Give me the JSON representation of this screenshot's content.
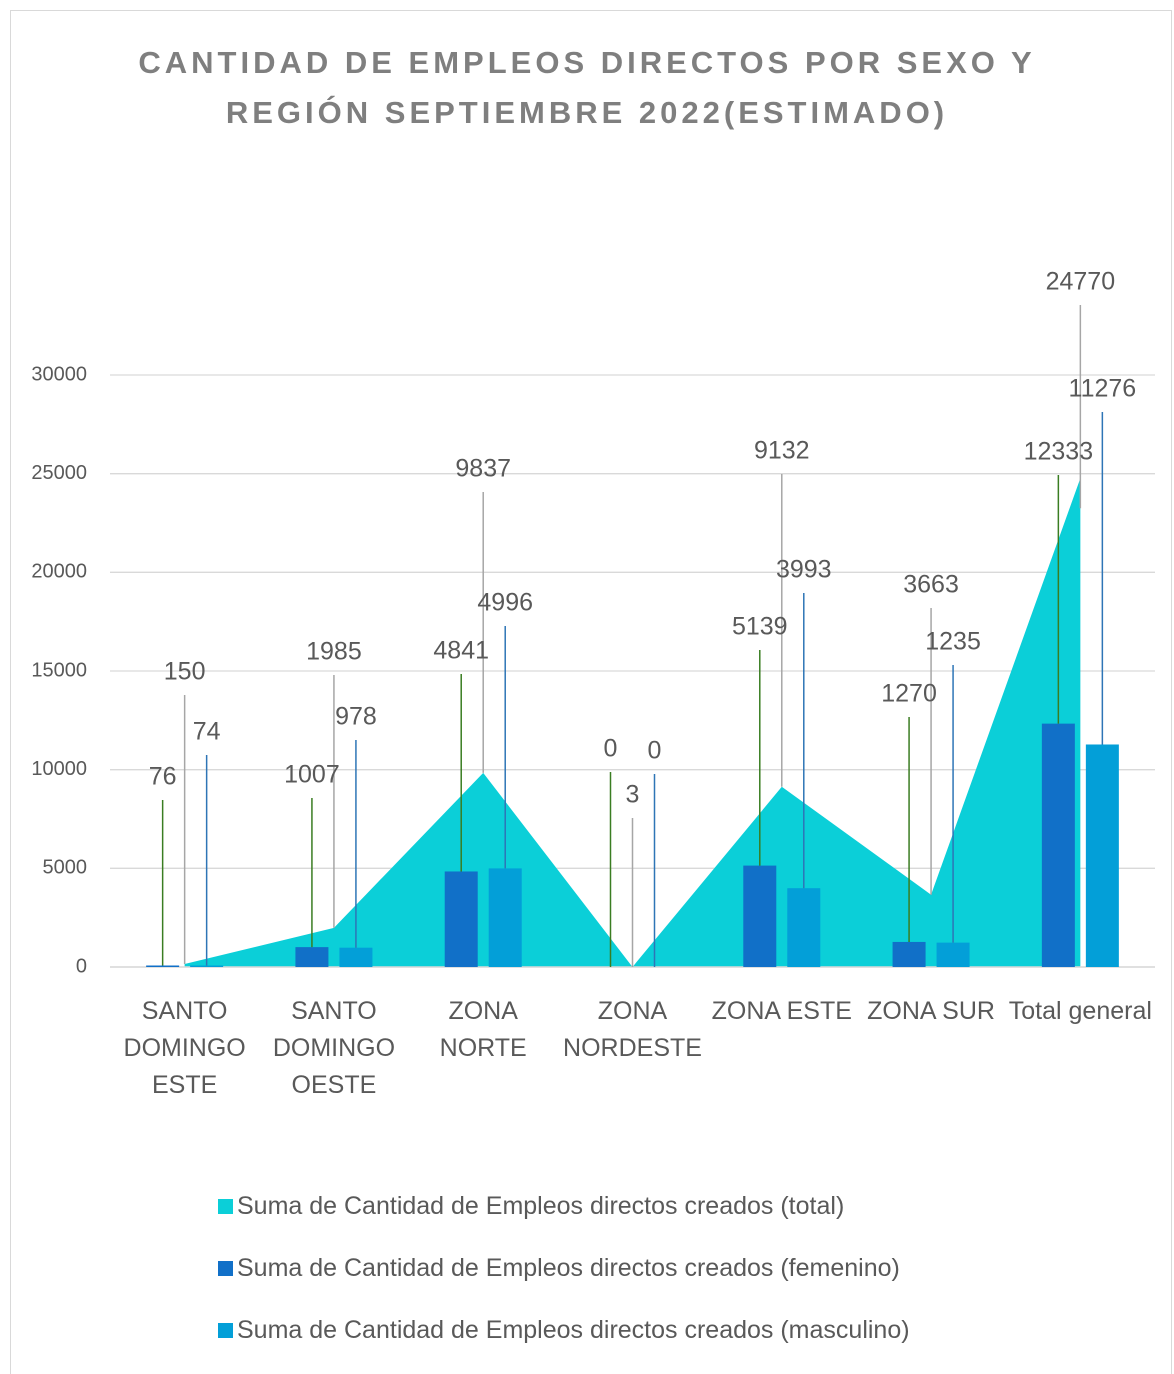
{
  "chart_data": {
    "type": "bar",
    "title": "CANTIDAD DE EMPLEOS DIRECTOS POR SEXO Y REGIÓN SEPTIEMBRE 2022(ESTIMADO)",
    "categories": [
      "SANTO DOMINGO ESTE",
      "SANTO DOMINGO OESTE",
      "ZONA NORTE",
      "ZONA NORDESTE",
      "ZONA ESTE",
      "ZONA SUR",
      "Total general"
    ],
    "series": [
      {
        "name": "Suma de Cantidad de Empleos directos creados (total)",
        "type": "area",
        "color": "#0bcfd8",
        "values": [
          150,
          1985,
          9837,
          3,
          9132,
          3663,
          24770
        ]
      },
      {
        "name": "Suma de Cantidad de Empleos directos creados (femenino)",
        "type": "bar",
        "color": "#1170c8",
        "values": [
          76,
          1007,
          4841,
          0,
          5139,
          1270,
          12333
        ]
      },
      {
        "name": "Suma de Cantidad de Empleos directos creados (masculino)",
        "type": "bar",
        "color": "#039fd8",
        "values": [
          74,
          978,
          4996,
          0,
          3993,
          1235,
          11276
        ]
      }
    ],
    "ylim": [
      0,
      30000
    ],
    "yticks": [
      0,
      5000,
      10000,
      15000,
      20000,
      25000,
      30000
    ],
    "grid": true
  }
}
